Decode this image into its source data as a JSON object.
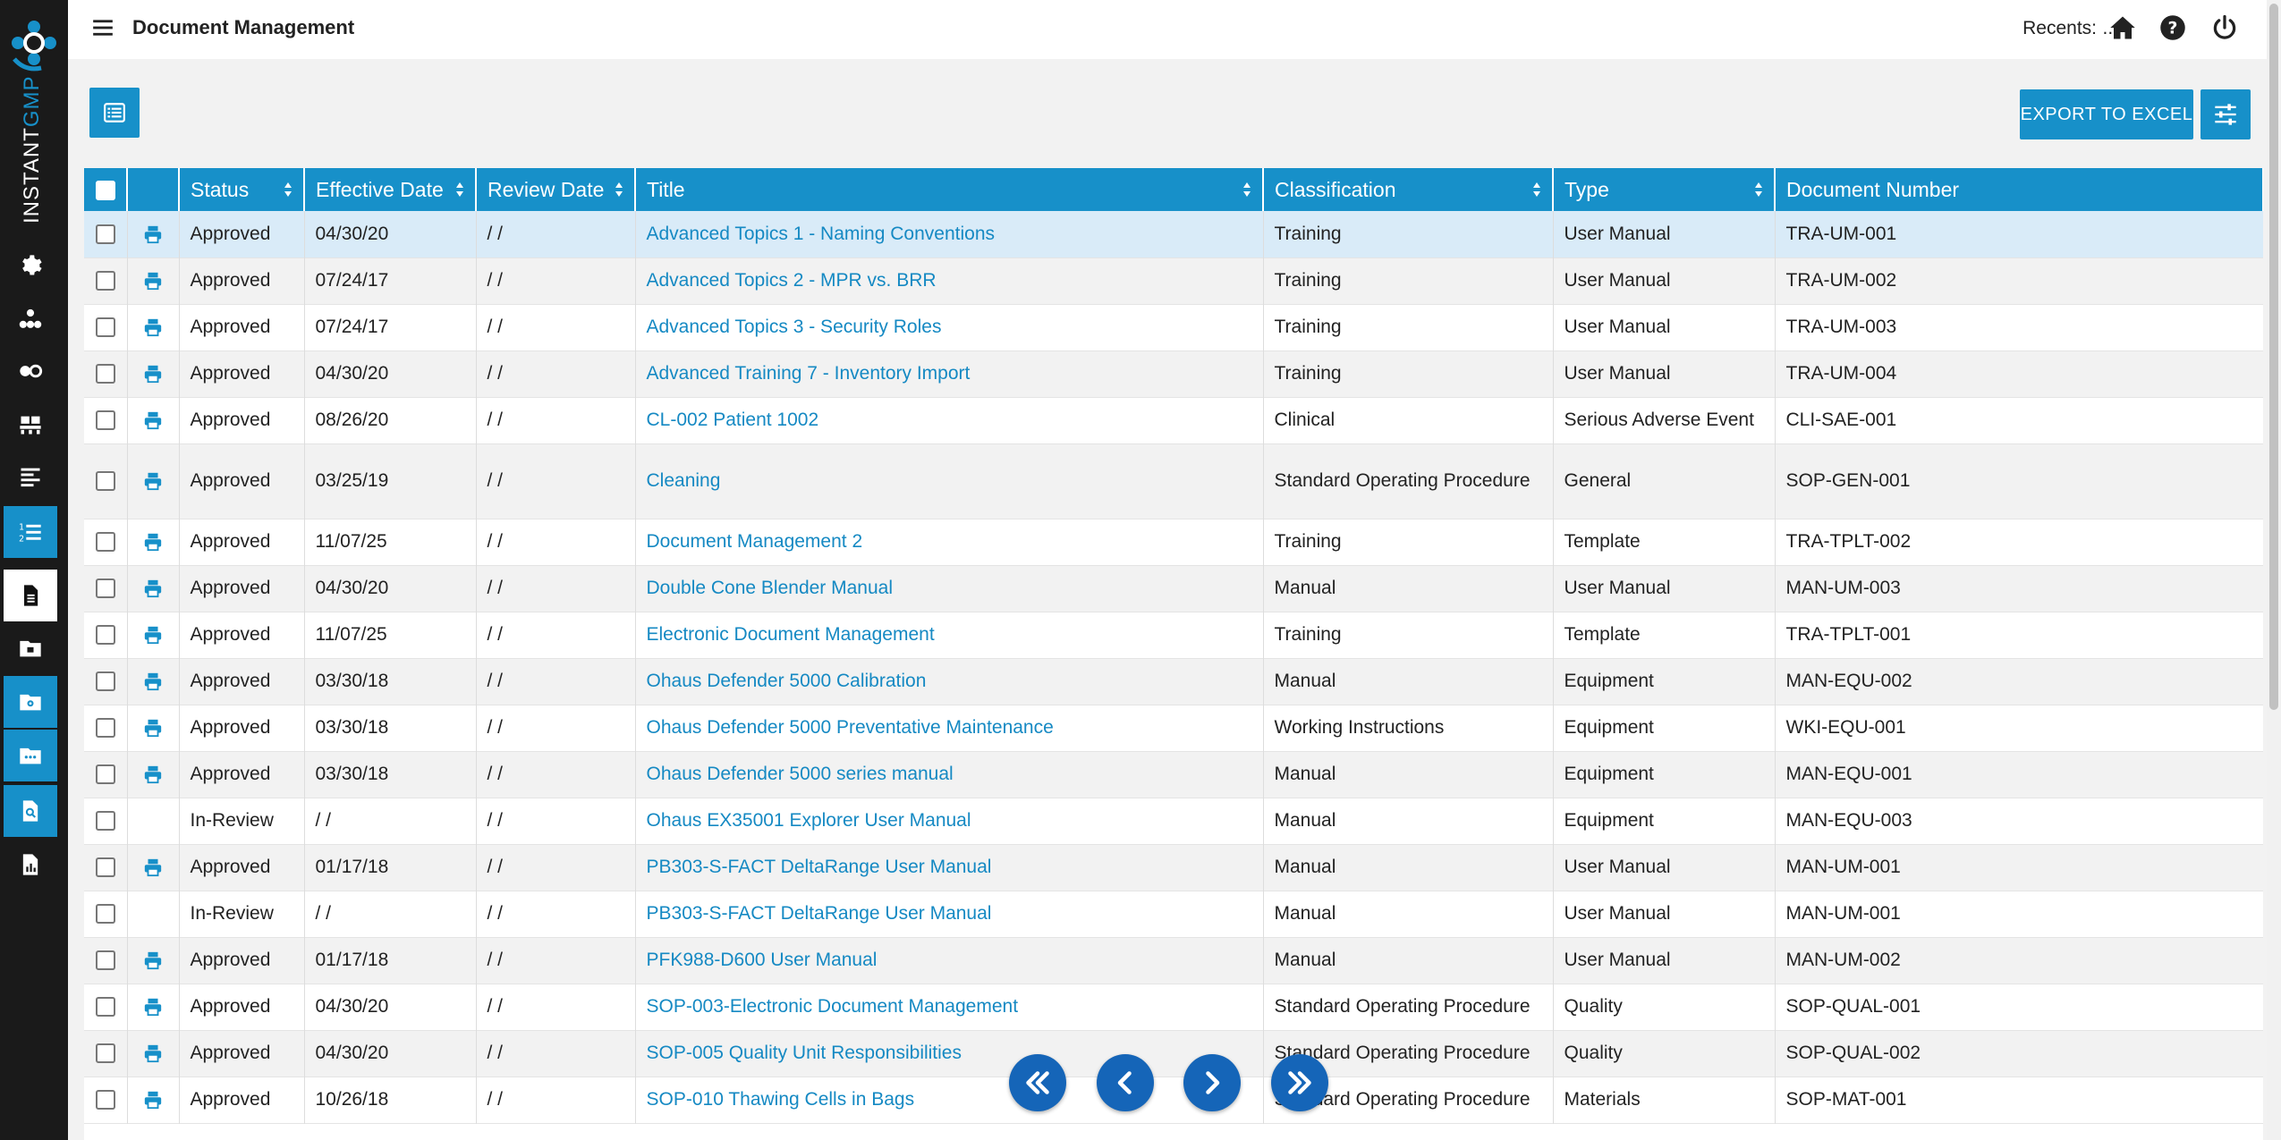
{
  "app": {
    "logo_text_prefix": "INSTANT",
    "logo_text_suffix": "GMP",
    "brand_color": "#1790c9"
  },
  "header": {
    "title": "Document Management",
    "recents_label": "Recents:",
    "recents_value": "..."
  },
  "toolbar": {
    "export_label": "EXPORT TO EXCEL"
  },
  "sidebar": {
    "items": [
      {
        "icon": "gear-icon"
      },
      {
        "icon": "sitemap-icon"
      },
      {
        "icon": "pills-icon"
      },
      {
        "icon": "pallet-icon"
      },
      {
        "icon": "align-left-icon"
      },
      {
        "icon": "numbered-list-icon"
      },
      {
        "icon": "document-icon"
      },
      {
        "icon": "folder-icon"
      },
      {
        "icon": "folder-gear-icon"
      },
      {
        "icon": "folder-dots-icon"
      },
      {
        "icon": "file-search-icon"
      },
      {
        "icon": "chart-file-icon"
      }
    ]
  },
  "table": {
    "columns": [
      "Status",
      "Effective Date",
      "Review Date",
      "Title",
      "Classification",
      "Type",
      "Document Number"
    ],
    "rows": [
      {
        "status": "Approved",
        "effective": "04/30/20",
        "review": "/ /",
        "title": "Advanced Topics 1 - Naming Conventions",
        "classification": "Training",
        "type": "User Manual",
        "number": "TRA-UM-001",
        "printable": true
      },
      {
        "status": "Approved",
        "effective": "07/24/17",
        "review": "/ /",
        "title": "Advanced Topics 2 - MPR vs. BRR",
        "classification": "Training",
        "type": "User Manual",
        "number": "TRA-UM-002",
        "printable": true
      },
      {
        "status": "Approved",
        "effective": "07/24/17",
        "review": "/ /",
        "title": "Advanced Topics 3 - Security Roles",
        "classification": "Training",
        "type": "User Manual",
        "number": "TRA-UM-003",
        "printable": true
      },
      {
        "status": "Approved",
        "effective": "04/30/20",
        "review": "/ /",
        "title": "Advanced Training 7 - Inventory Import",
        "classification": "Training",
        "type": "User Manual",
        "number": "TRA-UM-004",
        "printable": true
      },
      {
        "status": "Approved",
        "effective": "08/26/20",
        "review": "/ /",
        "title": "CL-002 Patient 1002",
        "classification": "Clinical",
        "type": "Serious Adverse Event",
        "number": "CLI-SAE-001",
        "printable": true
      },
      {
        "status": "Approved",
        "effective": "03/25/19",
        "review": "/ /",
        "title": "Cleaning",
        "classification": "Standard Operating Procedure",
        "type": "General",
        "number": "SOP-GEN-001",
        "printable": true
      },
      {
        "status": "Approved",
        "effective": "11/07/25",
        "review": "/ /",
        "title": "Document Management 2",
        "classification": "Training",
        "type": "Template",
        "number": "TRA-TPLT-002",
        "printable": true
      },
      {
        "status": "Approved",
        "effective": "04/30/20",
        "review": "/ /",
        "title": "Double Cone Blender Manual",
        "classification": "Manual",
        "type": "User Manual",
        "number": "MAN-UM-003",
        "printable": true
      },
      {
        "status": "Approved",
        "effective": "11/07/25",
        "review": "/ /",
        "title": "Electronic Document Management",
        "classification": "Training",
        "type": "Template",
        "number": "TRA-TPLT-001",
        "printable": true
      },
      {
        "status": "Approved",
        "effective": "03/30/18",
        "review": "/ /",
        "title": "Ohaus Defender 5000 Calibration",
        "classification": "Manual",
        "type": "Equipment",
        "number": "MAN-EQU-002",
        "printable": true
      },
      {
        "status": "Approved",
        "effective": "03/30/18",
        "review": "/ /",
        "title": "Ohaus Defender 5000 Preventative Maintenance",
        "classification": "Working Instructions",
        "type": "Equipment",
        "number": "WKI-EQU-001",
        "printable": true
      },
      {
        "status": "Approved",
        "effective": "03/30/18",
        "review": "/ /",
        "title": "Ohaus Defender 5000 series manual",
        "classification": "Manual",
        "type": "Equipment",
        "number": "MAN-EQU-001",
        "printable": true
      },
      {
        "status": "In-Review",
        "effective": "/ /",
        "review": "/ /",
        "title": "Ohaus EX35001 Explorer User Manual",
        "classification": "Manual",
        "type": "Equipment",
        "number": "MAN-EQU-003",
        "printable": false
      },
      {
        "status": "Approved",
        "effective": "01/17/18",
        "review": "/ /",
        "title": "PB303-S-FACT DeltaRange User Manual",
        "classification": "Manual",
        "type": "User Manual",
        "number": "MAN-UM-001",
        "printable": true
      },
      {
        "status": "In-Review",
        "effective": "/ /",
        "review": "/ /",
        "title": "PB303-S-FACT DeltaRange User Manual",
        "classification": "Manual",
        "type": "User Manual",
        "number": "MAN-UM-001",
        "printable": false
      },
      {
        "status": "Approved",
        "effective": "01/17/18",
        "review": "/ /",
        "title": "PFK988-D600 User Manual",
        "classification": "Manual",
        "type": "User Manual",
        "number": "MAN-UM-002",
        "printable": true
      },
      {
        "status": "Approved",
        "effective": "04/30/20",
        "review": "/ /",
        "title": "SOP-003-Electronic Document Management",
        "classification": "Standard Operating Procedure",
        "type": "Quality",
        "number": "SOP-QUAL-001",
        "printable": true
      },
      {
        "status": "Approved",
        "effective": "04/30/20",
        "review": "/ /",
        "title": "SOP-005 Quality Unit Responsibilities",
        "classification": "Standard Operating Procedure",
        "type": "Quality",
        "number": "SOP-QUAL-002",
        "printable": true
      },
      {
        "status": "Approved",
        "effective": "10/26/18",
        "review": "/ /",
        "title": "SOP-010 Thawing Cells in Bags",
        "classification": "Standard Operating Procedure",
        "type": "Materials",
        "number": "SOP-MAT-001",
        "printable": true
      }
    ]
  }
}
